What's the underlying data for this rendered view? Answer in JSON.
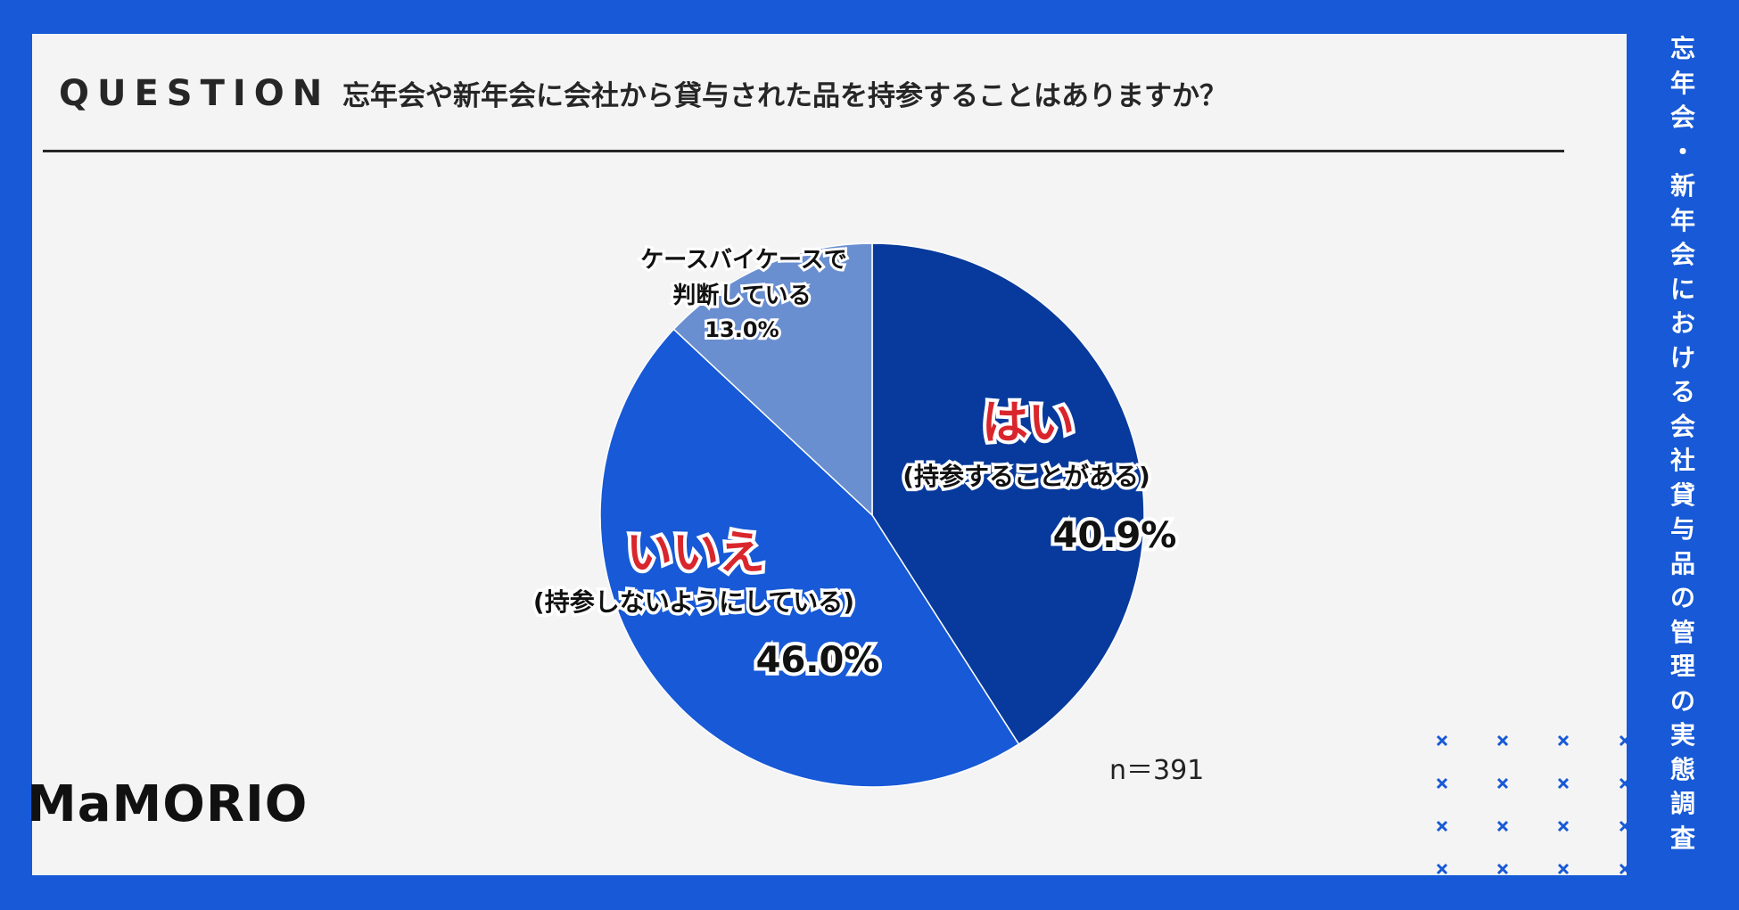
{
  "header": {
    "label": "QUESTION",
    "question": "忘年会や新年会に会社から貸与された品を持参することはありますか？"
  },
  "side_title": "忘年会・新年会における会社貸与品の管理の実態調査",
  "logo": "MaMORIO",
  "colors": {
    "frame": "#1759d6",
    "panel": "#f4f4f4",
    "accent_red": "#d9262c"
  },
  "chart_data": {
    "type": "pie",
    "start_angle_deg": 0,
    "direction": "clockwise",
    "slices": [
      {
        "label": "はい",
        "sublabel": "(持参することがある)",
        "value": 40.9,
        "display": "40.9%",
        "color": "#073a9c"
      },
      {
        "label": "いいえ",
        "sublabel": "(持参しないようにしている)",
        "value": 46.0,
        "display": "46.0%",
        "color": "#1759d6"
      },
      {
        "label": "ケースバイケースで",
        "sublabel": "判断している",
        "value": 13.0,
        "display": "13.0%",
        "color": "#6a8fd1"
      }
    ],
    "n_label": "n＝391"
  }
}
